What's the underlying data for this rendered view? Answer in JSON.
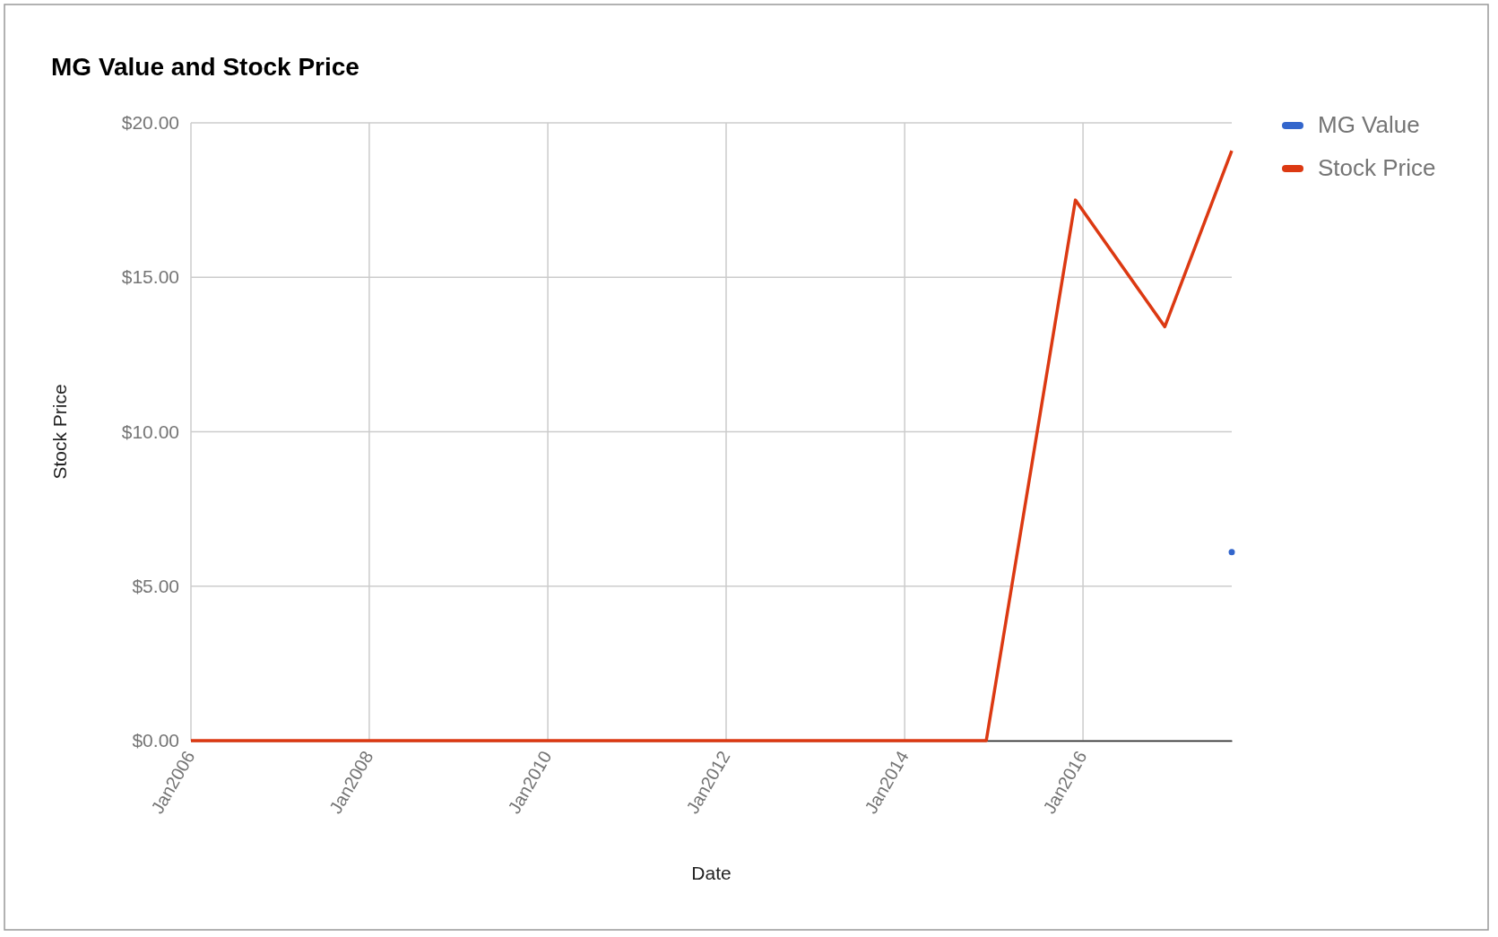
{
  "chart_data": {
    "type": "line",
    "title": "MG Value and Stock Price",
    "xlabel": "Date",
    "ylabel": "Stock Price",
    "series": [
      {
        "name": "MG Value",
        "color": "#3366cc",
        "marker": "circle",
        "x": [
          "2017-09"
        ],
        "values": [
          6.1
        ]
      },
      {
        "name": "Stock Price",
        "color": "#dc3912",
        "x": [
          "2006-01",
          "2014-12",
          "2015-12",
          "2016-12",
          "2017-09"
        ],
        "values": [
          0,
          0,
          17.5,
          13.4,
          19.1
        ]
      }
    ],
    "xlim": [
      "2006-01",
      "2017-09"
    ],
    "xticks": [
      {
        "value": "2006-01",
        "label": "Jan2006"
      },
      {
        "value": "2008-01",
        "label": "Jan2008"
      },
      {
        "value": "2010-01",
        "label": "Jan2010"
      },
      {
        "value": "2012-01",
        "label": "Jan2012"
      },
      {
        "value": "2014-01",
        "label": "Jan2014"
      },
      {
        "value": "2016-01",
        "label": "Jan2016"
      }
    ],
    "ylim": [
      0,
      20
    ],
    "yticks": [
      {
        "value": 0,
        "label": "$0.00"
      },
      {
        "value": 5,
        "label": "$5.00"
      },
      {
        "value": 10,
        "label": "$10.00"
      },
      {
        "value": 15,
        "label": "$15.00"
      },
      {
        "value": 20,
        "label": "$20.00"
      }
    ],
    "grid": true,
    "legend": "top right",
    "marker": "none",
    "line_style": "solid"
  }
}
